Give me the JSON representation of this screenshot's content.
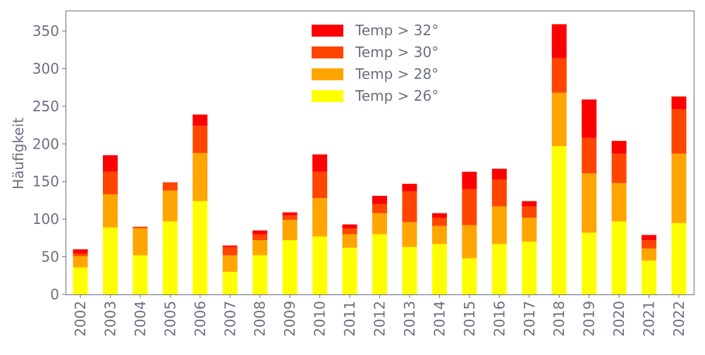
{
  "chart_data": {
    "type": "bar",
    "stacked": true,
    "title": "",
    "xlabel": "",
    "ylabel": "Häufigkeit",
    "ylim": [
      0,
      377
    ],
    "yticks": [
      0,
      50,
      100,
      150,
      200,
      250,
      300,
      350
    ],
    "grid": false,
    "legend_position": "top-center",
    "categories": [
      "2002",
      "2003",
      "2004",
      "2005",
      "2006",
      "2007",
      "2008",
      "2009",
      "2010",
      "2011",
      "2012",
      "2013",
      "2014",
      "2015",
      "2016",
      "2017",
      "2018",
      "2019",
      "2020",
      "2021",
      "2022"
    ],
    "series": [
      {
        "name": "Temp > 26°",
        "color": "#ffff00",
        "values": [
          36,
          89,
          52,
          97,
          124,
          30,
          52,
          72,
          77,
          62,
          80,
          63,
          67,
          48,
          67,
          70,
          197,
          82,
          97,
          45,
          95
        ]
      },
      {
        "name": "Temp > 28°",
        "color": "#ffa500",
        "values": [
          15,
          44,
          36,
          41,
          64,
          22,
          20,
          27,
          51,
          18,
          28,
          33,
          24,
          44,
          50,
          32,
          71,
          79,
          51,
          16,
          92
        ]
      },
      {
        "name": "Temp > 30°",
        "color": "#ff4500",
        "values": [
          3,
          30,
          2,
          11,
          36,
          11,
          8,
          6,
          35,
          8,
          12,
          41,
          11,
          48,
          36,
          15,
          46,
          47,
          39,
          11,
          59
        ]
      },
      {
        "name": "Temp > 32°",
        "color": "#ff0000",
        "values": [
          6,
          22,
          0,
          0,
          15,
          2,
          5,
          4,
          23,
          5,
          11,
          10,
          6,
          23,
          14,
          7,
          45,
          51,
          17,
          7,
          17
        ]
      }
    ]
  }
}
